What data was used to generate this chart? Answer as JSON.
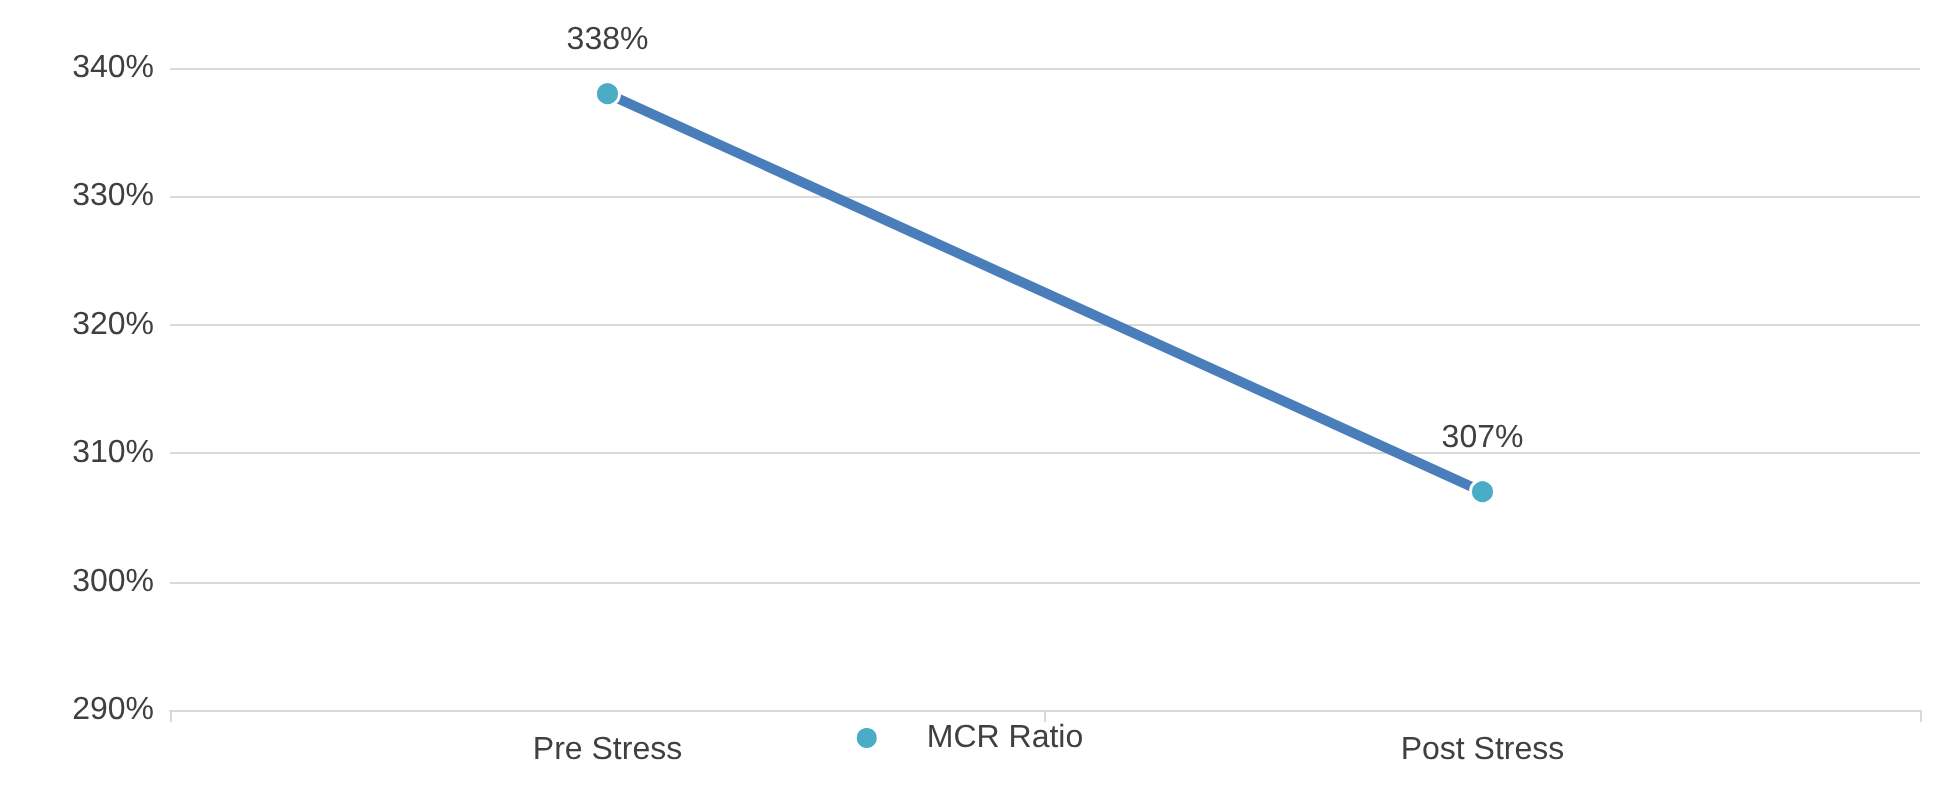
{
  "chart_data": {
    "type": "line",
    "categories": [
      "Pre Stress",
      "Post Stress"
    ],
    "series": [
      {
        "name": "MCR Ratio",
        "color": "#4a7ebb",
        "values": [
          338,
          307
        ],
        "value_labels": [
          "338%",
          "307%"
        ]
      }
    ],
    "marker": "circle",
    "ylim": [
      290,
      340
    ],
    "yticks": [
      {
        "value": 290,
        "label": "290%"
      },
      {
        "value": 300,
        "label": "300%"
      },
      {
        "value": 310,
        "label": "310%"
      },
      {
        "value": 320,
        "label": "320%"
      },
      {
        "value": 330,
        "label": "330%"
      },
      {
        "value": 340,
        "label": "340%"
      }
    ],
    "grid": "y",
    "legend": "bottom"
  }
}
